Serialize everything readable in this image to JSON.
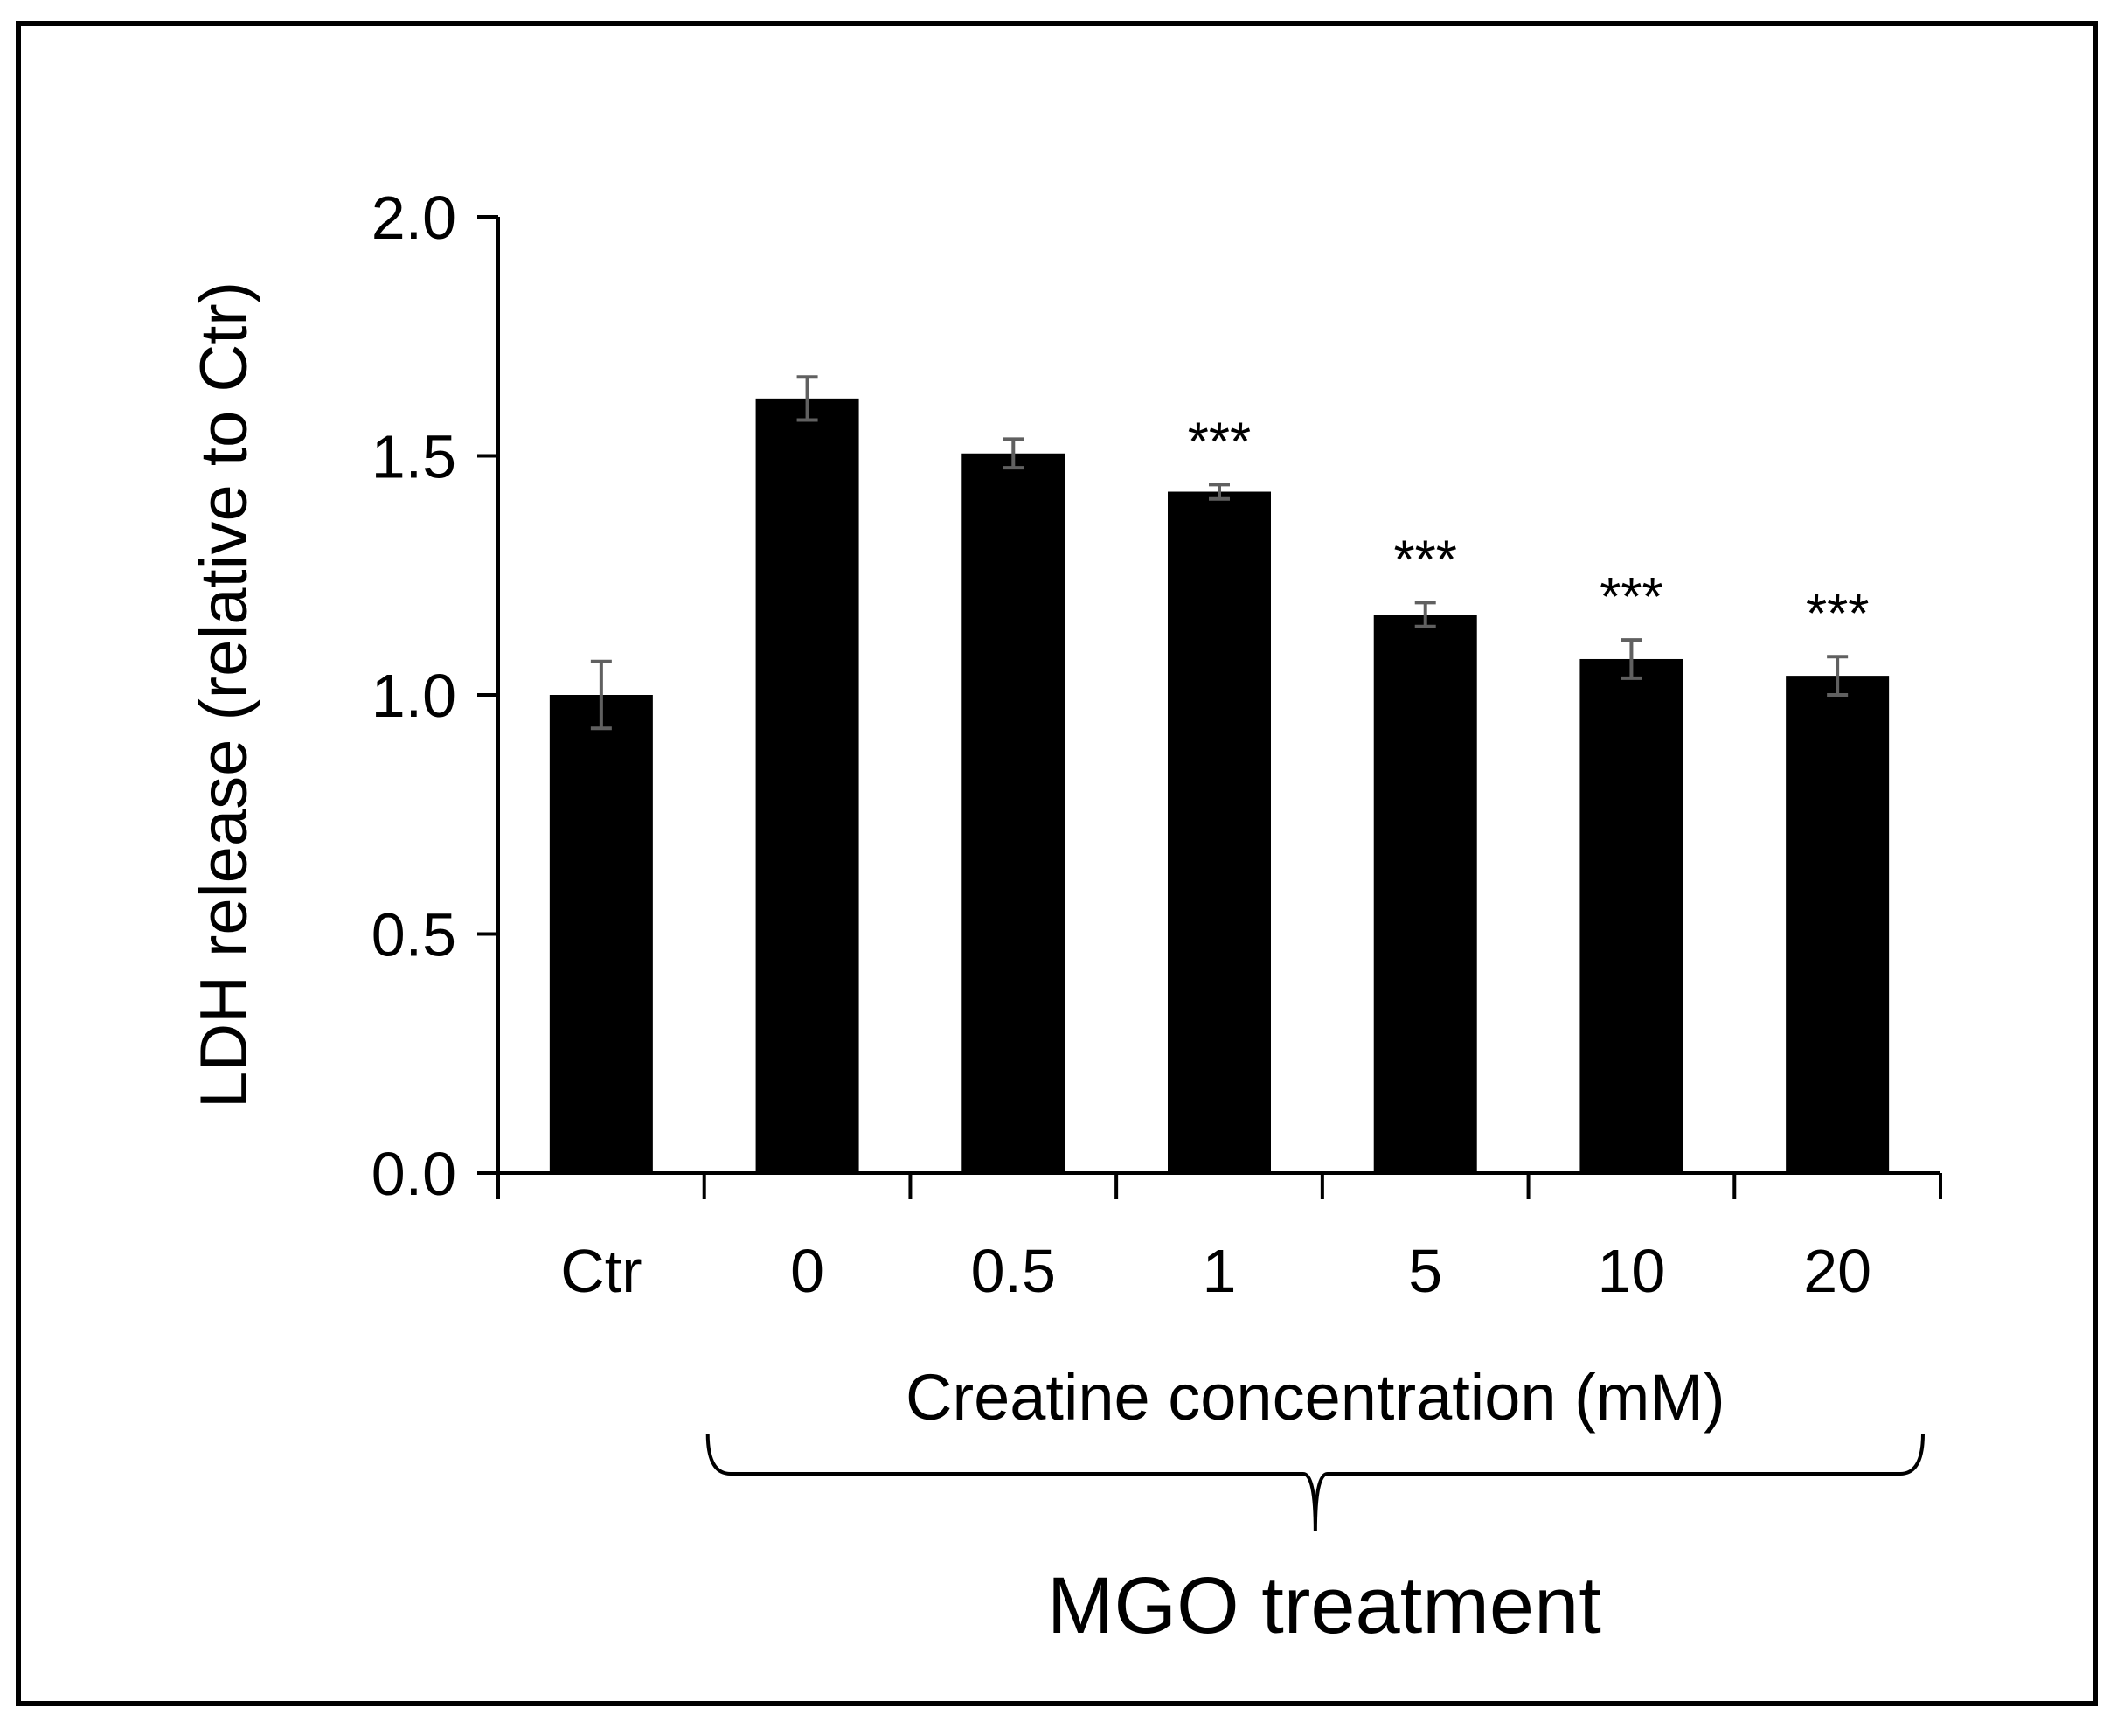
{
  "chart_data": {
    "type": "bar",
    "categories": [
      "Ctr",
      "0",
      "0.5",
      "1",
      "5",
      "10",
      "20"
    ],
    "values": [
      1.0,
      1.62,
      1.505,
      1.425,
      1.168,
      1.075,
      1.04
    ],
    "errors": [
      0.07,
      0.045,
      0.03,
      0.015,
      0.025,
      0.04,
      0.04
    ],
    "significance": [
      "",
      "",
      "",
      "***",
      "***",
      "***",
      "***"
    ],
    "bar_color": "#000000",
    "error_color": "#606060",
    "ylabel": "LDH release  (relative  to Ctr)",
    "xlabel": "Creatine  concentration  (mM)",
    "group_label": "MGO treatment",
    "group_span": [
      "0",
      "20"
    ],
    "ylim": [
      0,
      2.0
    ],
    "yticks": [
      "0.0",
      "0.5",
      "1.0",
      "1.5",
      "2.0"
    ],
    "ytick_values": [
      0,
      0.5,
      1.0,
      1.5,
      2.0
    ],
    "grid": false
  }
}
